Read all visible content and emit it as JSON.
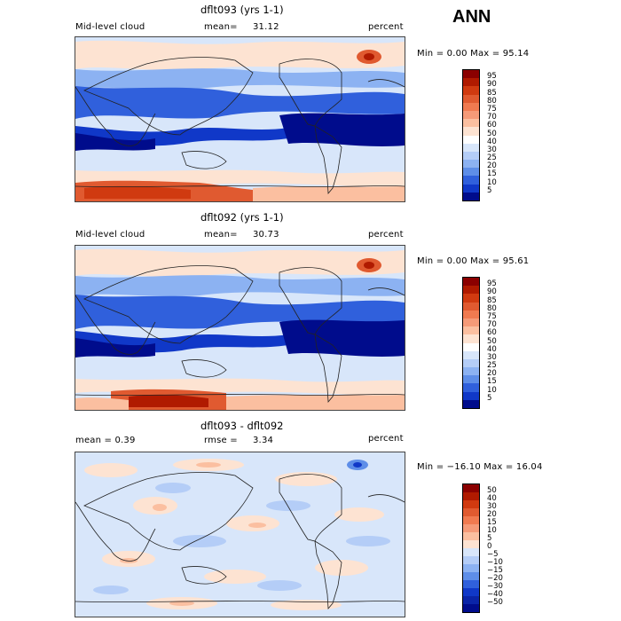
{
  "season": "ANN",
  "panels": [
    {
      "title": "dflt093 (yrs 1-1)",
      "left": "Mid-level cloud",
      "mid_label": "mean=",
      "mid_value": "31.12",
      "right": "percent",
      "minmax": "Min =   0.00 Max =  95.14",
      "kind": "abs"
    },
    {
      "title": "dflt092 (yrs 1-1)",
      "left": "Mid-level cloud",
      "mid_label": "mean=",
      "mid_value": "30.73",
      "right": "percent",
      "minmax": "Min =   0.00 Max =  95.61",
      "kind": "abs"
    },
    {
      "title": "dflt093 - dflt092",
      "left": "mean =   0.39",
      "mid_label": "rmse =",
      "mid_value": "3.34",
      "right": "percent",
      "minmax": "Min = −16.10 Max =  16.04",
      "kind": "diff"
    }
  ],
  "colorbars": {
    "abs": {
      "labels": [
        "95",
        "90",
        "85",
        "80",
        "75",
        "70",
        "60",
        "50",
        "40",
        "30",
        "25",
        "20",
        "15",
        "10",
        "5"
      ],
      "colors": [
        "#8b0000",
        "#b01a00",
        "#d03a10",
        "#e05a30",
        "#f07a50",
        "#f59a78",
        "#fbbfa0",
        "#fde3d2",
        "#ffffff",
        "#d8e6fa",
        "#b4cdf7",
        "#8cb2f2",
        "#5e8ee8",
        "#3060dc",
        "#1038c8",
        "#000c8c"
      ]
    },
    "diff": {
      "labels": [
        "50",
        "40",
        "30",
        "20",
        "15",
        "10",
        "5",
        "0",
        "−5",
        "−10",
        "−15",
        "−20",
        "−30",
        "−40",
        "−50"
      ],
      "colors": [
        "#8b0000",
        "#b01a00",
        "#d03a10",
        "#e05a30",
        "#f07a50",
        "#f59a78",
        "#fbbfa0",
        "#fde3d2",
        "#d8e6fa",
        "#b4cdf7",
        "#8cb2f2",
        "#5e8ee8",
        "#3060dc",
        "#1038c8",
        "#0a24a8",
        "#000c8c"
      ]
    }
  }
}
